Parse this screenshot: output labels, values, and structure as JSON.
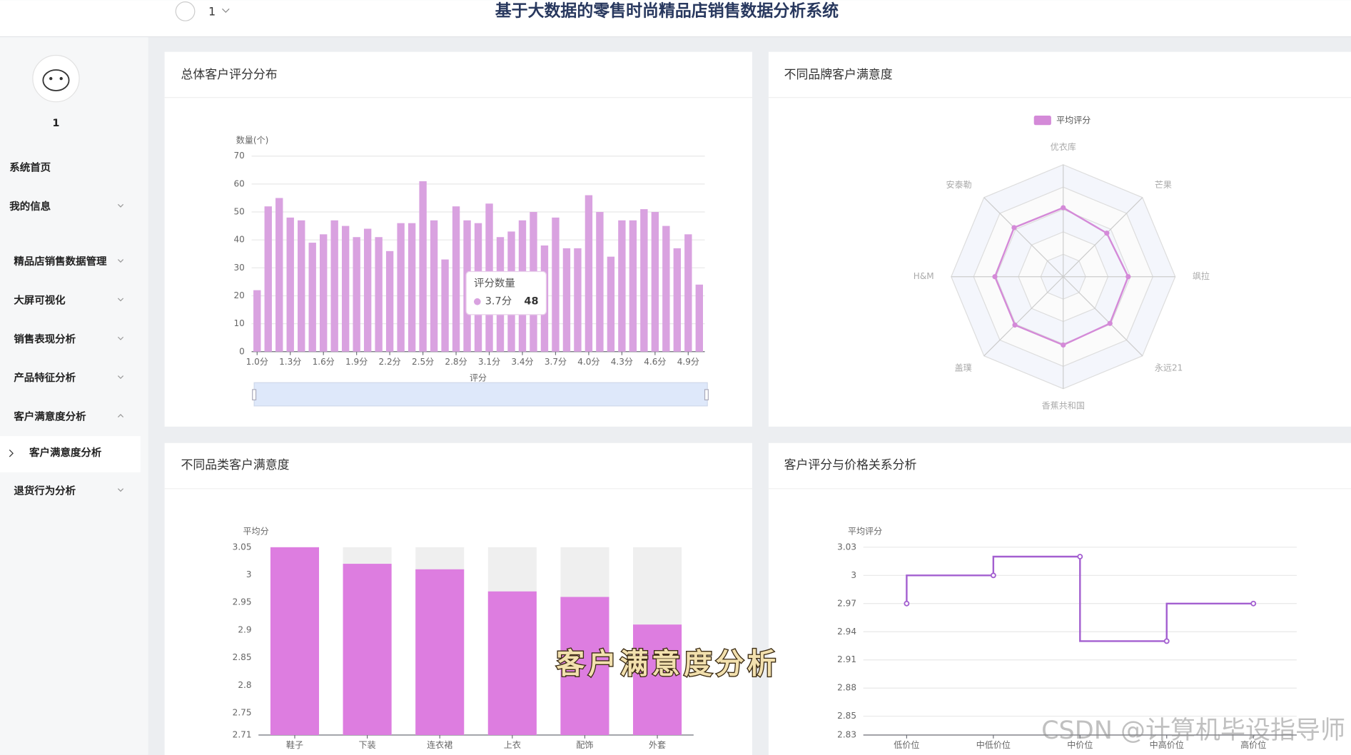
{
  "header": {
    "title": "基于大数据的零售时尚精品店销售数据分析系统",
    "user": "1"
  },
  "sidebar": {
    "username": "1",
    "menu": [
      "系统首页",
      "我的信息",
      "精品店销售数据管理",
      "大屏可视化",
      "销售表现分析",
      "产品特征分析",
      "客户满意度分析",
      "退货行为分析"
    ],
    "submenu": "客户满意度分析"
  },
  "chart_data": [
    {
      "type": "bar",
      "title": "总体客户评分分布",
      "y_label": "数量(个)",
      "x_label": "评分",
      "categories": [
        "1.0分",
        null,
        null,
        "1.3分",
        null,
        null,
        "1.6分",
        null,
        null,
        "1.9分",
        null,
        null,
        "2.2分",
        null,
        null,
        "2.5分",
        null,
        null,
        "2.8分",
        null,
        null,
        "3.1分",
        null,
        null,
        "3.4分",
        null,
        null,
        "3.7分",
        null,
        null,
        "4.0分",
        null,
        null,
        "4.3分",
        null,
        null,
        "4.6分",
        null,
        null,
        "4.9分",
        null
      ],
      "series": [
        {
          "name": "评分数量",
          "color": "#d9a2e0",
          "values": [
            22,
            52,
            55,
            48,
            47,
            39,
            42,
            47,
            45,
            41,
            44,
            41,
            36,
            46,
            46,
            61,
            47,
            33,
            52,
            47,
            46,
            53,
            41,
            43,
            47,
            50,
            38,
            48,
            37,
            37,
            56,
            50,
            34,
            47,
            47,
            51,
            50,
            45,
            37,
            42,
            24
          ]
        }
      ],
      "ylim": [
        0,
        70
      ],
      "yticks": [
        0,
        10,
        20,
        30,
        40,
        50,
        60,
        70
      ],
      "grid": true,
      "show_background": false,
      "data_zoom": true,
      "tooltip_category": "3.7分"
    },
    {
      "type": "radar",
      "title": "不同品牌客户满意度",
      "indicators": [
        "优衣库",
        "芒果",
        "飒拉",
        "永远21",
        "香蕉共和国",
        "盖璞",
        "H&M",
        "安泰勒"
      ],
      "max": 5,
      "series": [
        {
          "name": "平均评分",
          "color": "#d48ad8",
          "values": [
            3.08,
            2.75,
            2.9,
            2.95,
            3.05,
            3.05,
            3.05,
            3.1
          ]
        }
      ]
    },
    {
      "type": "bar",
      "title": "不同品类客户满意度",
      "y_label": "平均分",
      "categories": [
        "鞋子",
        "下装",
        "连衣裙",
        "上衣",
        "配饰",
        "外套"
      ],
      "series": [
        {
          "name": "平均分",
          "color": "#dd7de0",
          "values": [
            3.05,
            3.02,
            3.01,
            2.97,
            2.96,
            2.91
          ]
        }
      ],
      "ylim": [
        2.71,
        3.05
      ],
      "yticks": [
        2.71,
        2.75,
        2.8,
        2.85,
        2.9,
        2.95,
        3,
        3.05
      ],
      "grid": false,
      "show_background": true
    },
    {
      "type": "line",
      "title": "客户评分与价格关系分析",
      "y_label": "平均评分",
      "step": "start",
      "categories": [
        "低价位",
        "中低价位",
        "中价位",
        "中高价位",
        "高价位"
      ],
      "series": [
        {
          "name": "平均评分",
          "color": "#a35fd0",
          "values": [
            2.97,
            3.0,
            3.02,
            2.93,
            2.97
          ]
        }
      ],
      "ylim": [
        2.83,
        3.03
      ],
      "yticks": [
        2.83,
        2.85,
        2.88,
        2.91,
        2.94,
        2.97,
        3,
        3.03
      ],
      "grid": true
    }
  ],
  "caption": "客户满意度分析",
  "watermark": "CSDN @计算机毕设指导师"
}
